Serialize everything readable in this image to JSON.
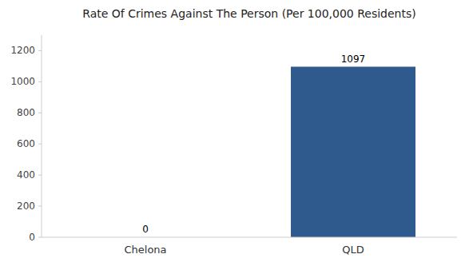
{
  "chart_data": {
    "type": "bar",
    "title": "Rate Of Crimes Against The Person (Per 100,000 Residents)",
    "categories": [
      "Chelona",
      "QLD"
    ],
    "values": [
      0,
      1097
    ],
    "color": "#2e5a8e",
    "ylim": [
      0,
      1300
    ],
    "yticks": [
      0,
      200,
      400,
      600,
      800,
      1000,
      1200
    ],
    "grid": false,
    "data_labels": true
  }
}
